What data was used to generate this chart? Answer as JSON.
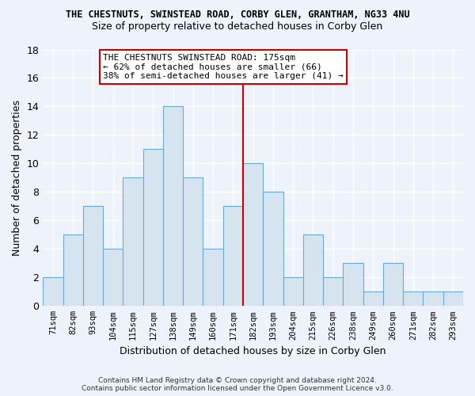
{
  "title": "THE CHESTNUTS, SWINSTEAD ROAD, CORBY GLEN, GRANTHAM, NG33 4NU",
  "subtitle": "Size of property relative to detached houses in Corby Glen",
  "xlabel": "Distribution of detached houses by size in Corby Glen",
  "ylabel": "Number of detached properties",
  "categories": [
    "71sqm",
    "82sqm",
    "93sqm",
    "104sqm",
    "115sqm",
    "127sqm",
    "138sqm",
    "149sqm",
    "160sqm",
    "171sqm",
    "182sqm",
    "193sqm",
    "204sqm",
    "215sqm",
    "226sqm",
    "238sqm",
    "249sqm",
    "260sqm",
    "271sqm",
    "282sqm",
    "293sqm"
  ],
  "values": [
    2,
    5,
    7,
    4,
    9,
    11,
    14,
    9,
    4,
    7,
    10,
    8,
    2,
    5,
    2,
    3,
    1,
    3,
    1,
    1,
    1
  ],
  "bar_color": "#d6e4f0",
  "bar_edge_color": "#6aaad4",
  "vline_x_idx": 10,
  "vline_color": "#cc0000",
  "annotation_text": "THE CHESTNUTS SWINSTEAD ROAD: 175sqm\n← 62% of detached houses are smaller (66)\n38% of semi-detached houses are larger (41) →",
  "annotation_box_color": "#ffffff",
  "annotation_box_edge_color": "#cc0000",
  "ylim": [
    0,
    18
  ],
  "yticks": [
    0,
    2,
    4,
    6,
    8,
    10,
    12,
    14,
    16,
    18
  ],
  "footer": "Contains HM Land Registry data © Crown copyright and database right 2024.\nContains public sector information licensed under the Open Government Licence v3.0.",
  "background_color": "#edf2fb",
  "grid_color": "#ffffff",
  "title_fontsize": 8.5,
  "subtitle_fontsize": 9.0,
  "footer_fontsize": 6.5
}
